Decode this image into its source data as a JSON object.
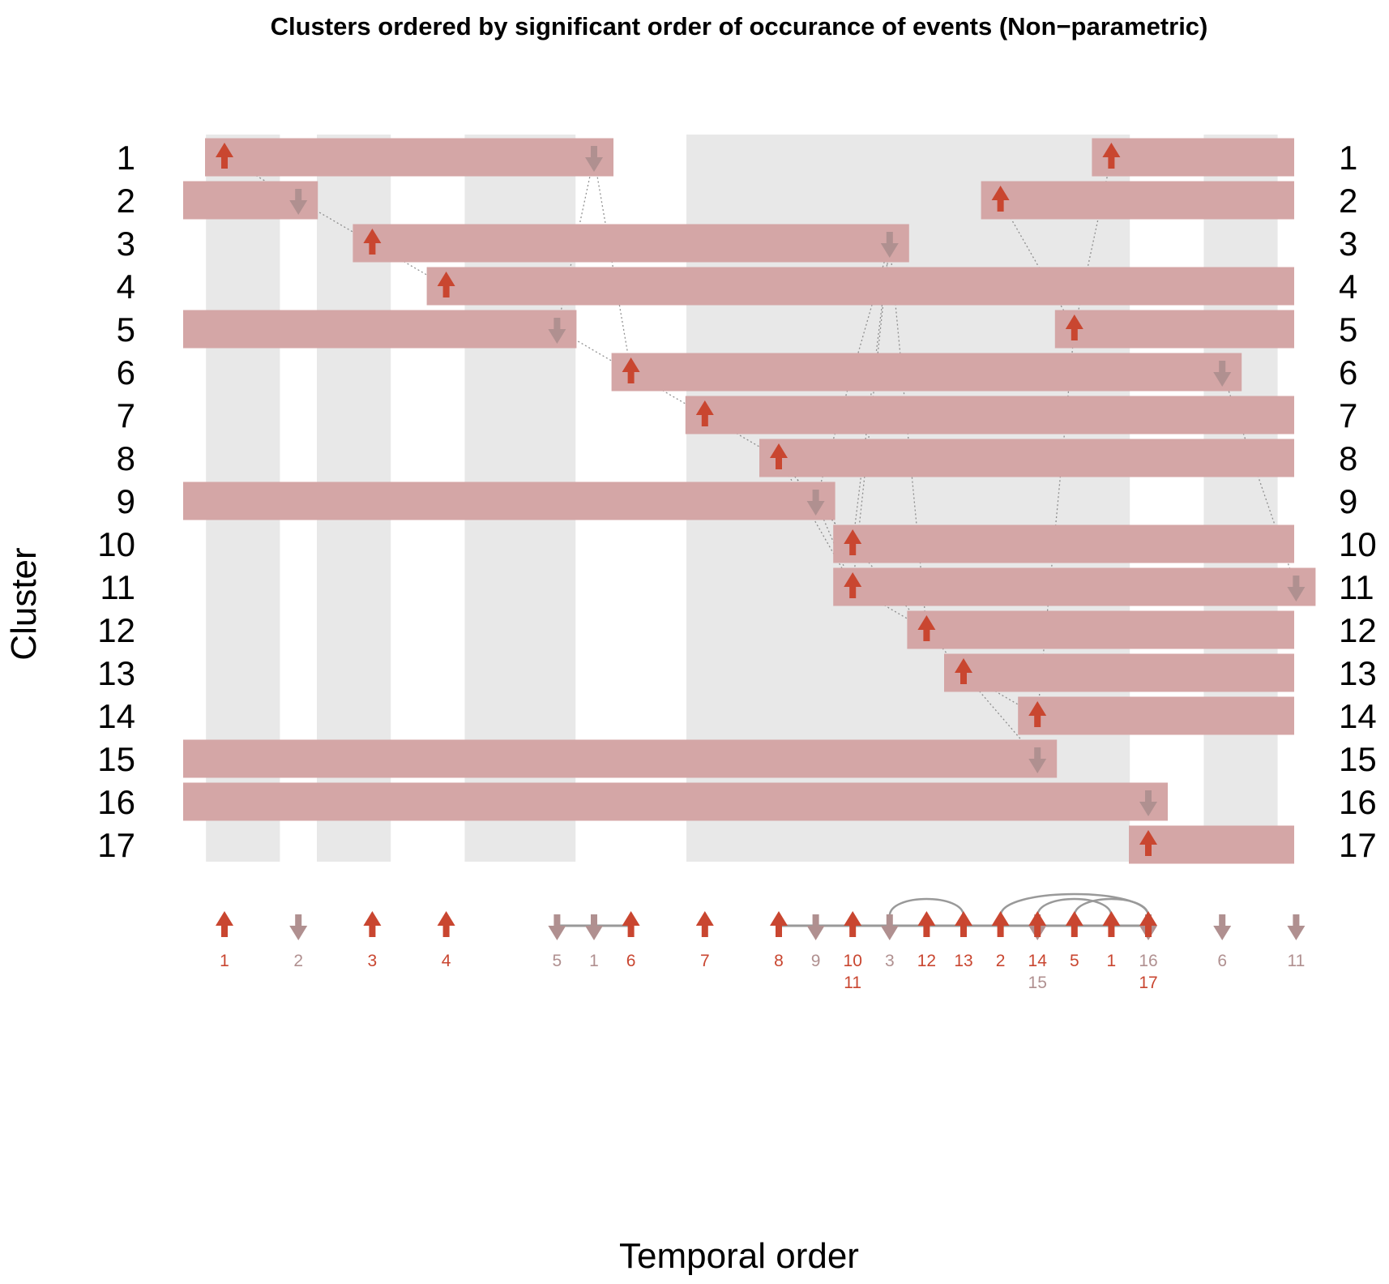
{
  "chart_data": {
    "type": "timeline",
    "title": "Clusters ordered by significant order of occurance of events (Non−parametric)",
    "xlabel": "Temporal order",
    "ylabel": "Cluster",
    "clusters": [
      "1",
      "2",
      "3",
      "4",
      "5",
      "6",
      "7",
      "8",
      "9",
      "10",
      "11",
      "12",
      "13",
      "14",
      "15",
      "16",
      "17"
    ],
    "positions": 30,
    "shaded_bands": [
      [
        1,
        2
      ],
      [
        4,
        5
      ],
      [
        8,
        10
      ],
      [
        14,
        25
      ],
      [
        28,
        29
      ]
    ],
    "events": [
      {
        "position": 1,
        "clusters": [
          "1"
        ],
        "direction": "up"
      },
      {
        "position": 3,
        "clusters": [
          "2"
        ],
        "direction": "down"
      },
      {
        "position": 5,
        "clusters": [
          "3"
        ],
        "direction": "up"
      },
      {
        "position": 7,
        "clusters": [
          "4"
        ],
        "direction": "up"
      },
      {
        "position": 10,
        "clusters": [
          "5"
        ],
        "direction": "down"
      },
      {
        "position": 11,
        "clusters": [
          "1"
        ],
        "direction": "down"
      },
      {
        "position": 12,
        "clusters": [
          "6"
        ],
        "direction": "up"
      },
      {
        "position": 14,
        "clusters": [
          "7"
        ],
        "direction": "up"
      },
      {
        "position": 16,
        "clusters": [
          "8"
        ],
        "direction": "up"
      },
      {
        "position": 17,
        "clusters": [
          "9"
        ],
        "direction": "down"
      },
      {
        "position": 18,
        "clusters": [
          "10",
          "11"
        ],
        "direction": "up"
      },
      {
        "position": 19,
        "clusters": [
          "3"
        ],
        "direction": "down"
      },
      {
        "position": 20,
        "clusters": [
          "12"
        ],
        "direction": "up"
      },
      {
        "position": 21,
        "clusters": [
          "13"
        ],
        "direction": "up"
      },
      {
        "position": 22,
        "clusters": [
          "2"
        ],
        "direction": "up"
      },
      {
        "position": 23,
        "clusters": [
          "14"
        ],
        "direction": "up"
      },
      {
        "position": 23,
        "clusters": [
          "15"
        ],
        "direction": "down"
      },
      {
        "position": 24,
        "clusters": [
          "5"
        ],
        "direction": "up"
      },
      {
        "position": 25,
        "clusters": [
          "1"
        ],
        "direction": "up"
      },
      {
        "position": 26,
        "clusters": [
          "16"
        ],
        "direction": "down"
      },
      {
        "position": 26,
        "clusters": [
          "17"
        ],
        "direction": "up"
      },
      {
        "position": 28,
        "clusters": [
          "6"
        ],
        "direction": "down"
      },
      {
        "position": 30,
        "clusters": [
          "11"
        ],
        "direction": "down"
      }
    ],
    "bars": [
      {
        "cluster": "1",
        "segments": [
          [
            1,
            11
          ],
          [
            25,
            null
          ]
        ]
      },
      {
        "cluster": "2",
        "segments": [
          [
            null,
            3
          ],
          [
            22,
            null
          ]
        ]
      },
      {
        "cluster": "3",
        "segments": [
          [
            5,
            19
          ]
        ]
      },
      {
        "cluster": "4",
        "segments": [
          [
            7,
            null
          ]
        ]
      },
      {
        "cluster": "5",
        "segments": [
          [
            null,
            10
          ],
          [
            24,
            null
          ]
        ]
      },
      {
        "cluster": "6",
        "segments": [
          [
            12,
            28
          ]
        ]
      },
      {
        "cluster": "7",
        "segments": [
          [
            14,
            null
          ]
        ]
      },
      {
        "cluster": "8",
        "segments": [
          [
            16,
            null
          ]
        ]
      },
      {
        "cluster": "9",
        "segments": [
          [
            null,
            17
          ]
        ]
      },
      {
        "cluster": "10",
        "segments": [
          [
            18,
            null
          ]
        ]
      },
      {
        "cluster": "11",
        "segments": [
          [
            18,
            30
          ]
        ]
      },
      {
        "cluster": "12",
        "segments": [
          [
            20,
            null
          ]
        ]
      },
      {
        "cluster": "13",
        "segments": [
          [
            21,
            null
          ]
        ]
      },
      {
        "cluster": "14",
        "segments": [
          [
            23,
            null
          ]
        ]
      },
      {
        "cluster": "15",
        "segments": [
          [
            null,
            23
          ]
        ]
      },
      {
        "cluster": "16",
        "segments": [
          [
            null,
            26
          ]
        ]
      },
      {
        "cluster": "17",
        "segments": [
          [
            26,
            null
          ]
        ]
      }
    ],
    "tied_spans": [
      [
        10,
        12
      ],
      [
        16,
        26
      ]
    ],
    "arcs": [
      [
        19,
        21
      ],
      [
        22,
        26
      ],
      [
        23,
        25
      ],
      [
        24,
        26
      ]
    ],
    "colors": {
      "up": "#C94630",
      "down": "#B09090",
      "bar": "#D4A6A6",
      "band": "#E8E8E8",
      "connector": "#999999",
      "dotted": "#777777"
    }
  }
}
